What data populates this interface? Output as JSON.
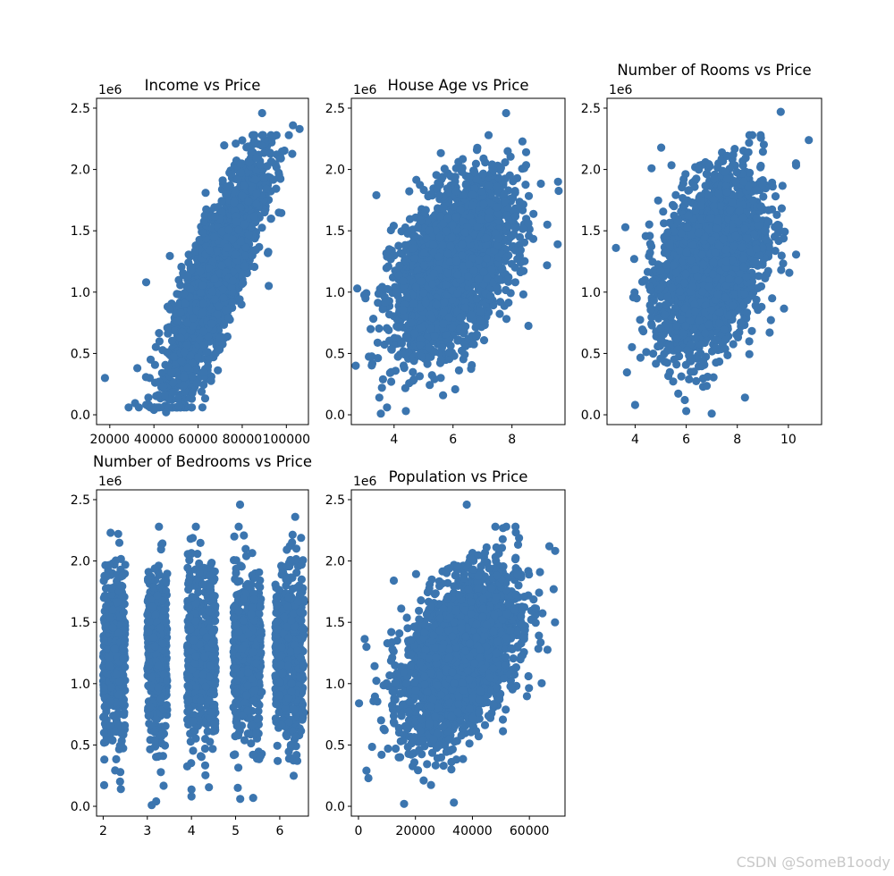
{
  "figure": {
    "point_color": "#3b75af",
    "watermark": "CSDN @SomeB1oody"
  },
  "chart_data": [
    {
      "type": "scatter",
      "title": "Income vs Price",
      "xlabel": "",
      "ylabel": "",
      "y_multiplier": "1e6",
      "xlim": [
        14000,
        110000
      ],
      "ylim": [
        -0.08,
        2.58
      ],
      "xticks": [
        20000,
        40000,
        60000,
        80000,
        100000
      ],
      "xtick_labels": [
        "20000",
        "40000",
        "60000",
        "80000",
        "100000"
      ],
      "yticks": [
        0.0,
        0.5,
        1.0,
        1.5,
        2.0,
        2.5
      ],
      "ytick_labels": [
        "0.0",
        "0.5",
        "1.0",
        "1.5",
        "2.0",
        "2.5"
      ],
      "grid": false,
      "x_center": 68000,
      "x_sd": 10500,
      "y_intercept": -1.35,
      "y_slope": 3.64e-05,
      "y_noise_sd": 0.26,
      "n_points": 2500,
      "outliers": [
        [
          17800,
          0.3
        ],
        [
          37500,
          0.14
        ],
        [
          40000,
          0.04
        ],
        [
          45500,
          0.02
        ],
        [
          103000,
          2.36
        ],
        [
          106000,
          2.33
        ],
        [
          89000,
          2.46
        ],
        [
          92000,
          1.05
        ],
        [
          38500,
          0.45
        ],
        [
          36500,
          1.08
        ]
      ]
    },
    {
      "type": "scatter",
      "title": "House Age vs Price",
      "xlabel": "",
      "ylabel": "",
      "y_multiplier": "1e6",
      "xlim": [
        2.55,
        9.8
      ],
      "ylim": [
        -0.08,
        2.58
      ],
      "xticks": [
        4,
        6,
        8
      ],
      "xtick_labels": [
        "4",
        "6",
        "8"
      ],
      "yticks": [
        0.0,
        0.5,
        1.0,
        1.5,
        2.0,
        2.5
      ],
      "ytick_labels": [
        "0.0",
        "0.5",
        "1.0",
        "1.5",
        "2.0",
        "2.5"
      ],
      "grid": false,
      "x_center": 6.0,
      "x_sd": 1.0,
      "y_intercept": 0.22,
      "y_slope": 0.165,
      "y_noise_sd": 0.3,
      "n_points": 2500,
      "outliers": [
        [
          2.7,
          0.4
        ],
        [
          2.75,
          1.03
        ],
        [
          3.4,
          1.79
        ],
        [
          3.55,
          0.01
        ],
        [
          4.4,
          0.03
        ],
        [
          9.55,
          1.39
        ],
        [
          7.8,
          2.46
        ],
        [
          3.5,
          0.14
        ],
        [
          9.2,
          1.55
        ]
      ]
    },
    {
      "type": "scatter",
      "title": "Number of Rooms vs Price",
      "xlabel": "",
      "ylabel": "",
      "y_multiplier": "1e6",
      "xlim": [
        2.9,
        11.3
      ],
      "ylim": [
        -0.08,
        2.58
      ],
      "xticks": [
        4,
        6,
        8,
        10
      ],
      "xtick_labels": [
        "4",
        "6",
        "8",
        "10"
      ],
      "yticks": [
        0.0,
        0.5,
        1.0,
        1.5,
        2.0,
        2.5
      ],
      "ytick_labels": [
        "0.0",
        "0.5",
        "1.0",
        "1.5",
        "2.0",
        "2.5"
      ],
      "grid": false,
      "x_center": 7.0,
      "x_sd": 1.0,
      "y_intercept": 0.4,
      "y_slope": 0.12,
      "y_noise_sd": 0.33,
      "n_points": 2500,
      "outliers": [
        [
          3.25,
          1.36
        ],
        [
          4.0,
          0.08
        ],
        [
          10.8,
          2.24
        ],
        [
          9.7,
          2.47
        ],
        [
          6.0,
          0.03
        ],
        [
          7.0,
          0.01
        ],
        [
          8.3,
          0.14
        ],
        [
          10.3,
          2.05
        ]
      ]
    },
    {
      "type": "scatter",
      "title": "Number of Bedrooms vs Price",
      "xlabel": "",
      "ylabel": "",
      "y_multiplier": "1e6",
      "xlim": [
        1.85,
        6.65
      ],
      "ylim": [
        -0.08,
        2.58
      ],
      "xticks": [
        2,
        3,
        4,
        5,
        6
      ],
      "xtick_labels": [
        "2",
        "3",
        "4",
        "5",
        "6"
      ],
      "yticks": [
        0.0,
        0.5,
        1.0,
        1.5,
        2.0,
        2.5
      ],
      "ytick_labels": [
        "0.0",
        "0.5",
        "1.0",
        "1.5",
        "2.0",
        "2.5"
      ],
      "grid": false,
      "x_clusters": [
        [
          2.0,
          2.5
        ],
        [
          3.0,
          3.45
        ],
        [
          3.9,
          4.55
        ],
        [
          4.95,
          5.6
        ],
        [
          5.9,
          6.55
        ]
      ],
      "y_center": 1.23,
      "y_sd": 0.35,
      "n_points": 2500,
      "outliers": [
        [
          5.1,
          2.46
        ],
        [
          6.35,
          2.36
        ],
        [
          4.0,
          0.08
        ],
        [
          3.1,
          0.01
        ],
        [
          3.2,
          0.04
        ],
        [
          5.05,
          0.15
        ],
        [
          2.4,
          0.14
        ]
      ]
    },
    {
      "type": "scatter",
      "title": "Population vs Price",
      "xlabel": "",
      "ylabel": "",
      "y_multiplier": "1e6",
      "xlim": [
        -2500,
        72500
      ],
      "ylim": [
        -0.08,
        2.58
      ],
      "xticks": [
        0,
        20000,
        40000,
        60000
      ],
      "xtick_labels": [
        "0",
        "20000",
        "40000",
        "60000"
      ],
      "yticks": [
        0.0,
        0.5,
        1.0,
        1.5,
        2.0,
        2.5
      ],
      "ytick_labels": [
        "0.0",
        "0.5",
        "1.0",
        "1.5",
        "2.0",
        "2.5"
      ],
      "grid": false,
      "x_center": 36000,
      "x_sd": 10000,
      "y_intercept": 0.7,
      "y_slope": 1.48e-05,
      "y_noise_sd": 0.3,
      "n_points": 2500,
      "outliers": [
        [
          200,
          0.84
        ],
        [
          2800,
          1.3
        ],
        [
          3500,
          0.23
        ],
        [
          16000,
          0.02
        ],
        [
          33500,
          0.03
        ],
        [
          38000,
          2.46
        ],
        [
          69000,
          1.5
        ],
        [
          68500,
          1.77
        ],
        [
          67000,
          2.12
        ]
      ]
    }
  ]
}
